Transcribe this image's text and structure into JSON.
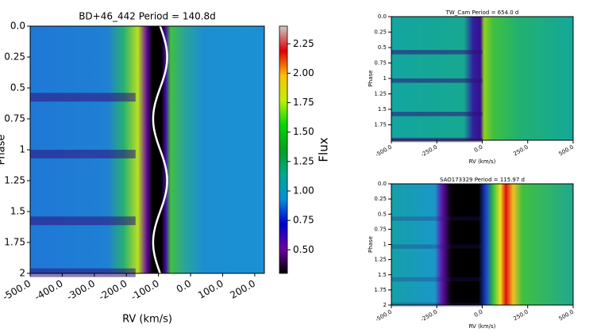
{
  "chart_data": [
    {
      "type": "heatmap",
      "title": "BD+46_442 Period = 140.8d",
      "xlabel": "RV (km/s)",
      "ylabel": "Phase",
      "xlim": [
        -500,
        230
      ],
      "ylim": [
        0,
        2
      ],
      "xticks": [
        {
          "value": -500,
          "label": "-500.0"
        },
        {
          "value": -400,
          "label": "-400.0"
        },
        {
          "value": -300,
          "label": "-300.0"
        },
        {
          "value": -200,
          "label": "-200.0"
        },
        {
          "value": -100,
          "label": "-100.0"
        },
        {
          "value": 0,
          "label": "0.0"
        },
        {
          "value": 100,
          "label": "100.0"
        },
        {
          "value": 200,
          "label": "200.0"
        }
      ],
      "yticks": [
        {
          "value": 0,
          "label": "0.0"
        },
        0.25,
        0.5,
        0.75,
        1,
        1.25,
        1.5,
        1.75,
        2
      ],
      "colorbar": {
        "label": "Flux",
        "clim": [
          0.3,
          2.4
        ],
        "ticks": [
          {
            "value": 0.5,
            "label": "0.50"
          },
          0.75,
          {
            "value": 1,
            "label": "1.00"
          },
          1.25,
          {
            "value": 1.5,
            "label": "1.50"
          },
          1.75,
          {
            "value": 2,
            "label": "2.00"
          },
          2.25
        ]
      }
    },
    {
      "type": "heatmap",
      "title": "TW_Cam Period = 654.0 d",
      "xlabel": "RV (km/s)",
      "ylabel": "Phase",
      "xlim": [
        -500,
        500
      ],
      "ylim": [
        0,
        2
      ],
      "xticks": [
        {
          "value": -500,
          "label": "-500.0"
        },
        {
          "value": -250,
          "label": "-250.0"
        },
        {
          "value": 0,
          "label": "0.0"
        },
        {
          "value": 250,
          "label": "250.0"
        },
        {
          "value": 500,
          "label": "500.0"
        }
      ],
      "yticks": [
        {
          "value": 0,
          "label": "0.0"
        },
        0.25,
        0.5,
        0.75,
        1,
        1.25,
        1.5,
        1.75
      ]
    },
    {
      "type": "heatmap",
      "title": "SAO173329 Period = 115.97 d",
      "xlabel": "RV (km/s)",
      "ylabel": "Phase",
      "xlim": [
        -500,
        500
      ],
      "ylim": [
        0,
        2
      ],
      "xticks": [
        {
          "value": -500,
          "label": "-500.0"
        },
        {
          "value": -250,
          "label": "-250.0"
        },
        {
          "value": 0,
          "label": "0.0"
        },
        {
          "value": 250,
          "label": "250.0"
        },
        {
          "value": 500,
          "label": "500.0"
        }
      ],
      "yticks": [
        {
          "value": 0,
          "label": "0.0"
        },
        0.25,
        0.5,
        0.75,
        1,
        1.25,
        1.5,
        1.75,
        2
      ]
    }
  ]
}
